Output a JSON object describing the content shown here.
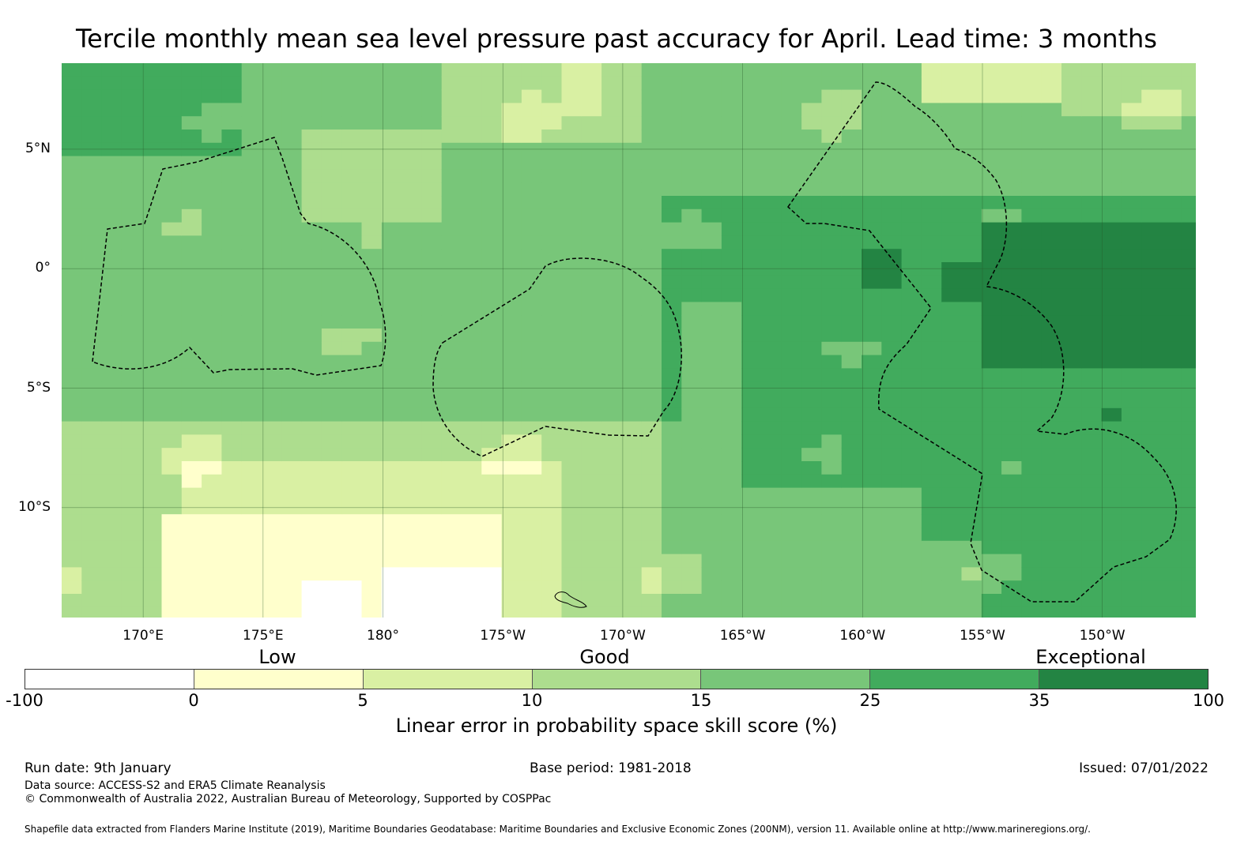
{
  "title": "Tercile monthly mean sea level pressure past accuracy for April. Lead time: 3 months",
  "map": {
    "lat_labels": [
      "5°N",
      "0°",
      "5°S",
      "10°S"
    ],
    "lat_values": [
      5,
      0,
      -5,
      -10
    ],
    "lon_labels": [
      "170°E",
      "175°E",
      "180°",
      "175°W",
      "170°W",
      "165°W",
      "160°W",
      "155°W",
      "150°W"
    ],
    "lon_values": [
      170,
      175,
      180,
      185,
      190,
      195,
      200,
      205,
      210
    ],
    "lon_range": [
      166.6,
      213.9
    ],
    "lat_range": [
      -14.6,
      8.6
    ]
  },
  "categories": [
    "Low",
    "Good",
    "Exceptional"
  ],
  "colorbar": {
    "ticks": [
      "-100",
      "0",
      "5",
      "10",
      "15",
      "25",
      "35",
      "100"
    ],
    "colors": [
      "#ffffff",
      "#ffffcc",
      "#d9f0a3",
      "#addd8e",
      "#78c679",
      "#41ab5d",
      "#238443"
    ],
    "label": "Linear error in probability space skill score (%)"
  },
  "footer": {
    "run_date": "Run date: 9th January",
    "base_period": "Base period: 1981-2018",
    "issued": "Issued: 07/01/2022",
    "data_source": "Data source: ACCESS-S2 and ERA5 Climate Reanalysis",
    "copyright": "© Commonwealth of Australia 2022, Australian Bureau of Meteorology, Supported by COSPPac",
    "shapefile": "Shapefile data extracted from Flanders Marine Institute (2019), Maritime Boundaries Geodatabase: Maritime Boundaries and Exclusive Economic Zones (200NM), version 11. Available online at http://www.marineregions.org/."
  }
}
